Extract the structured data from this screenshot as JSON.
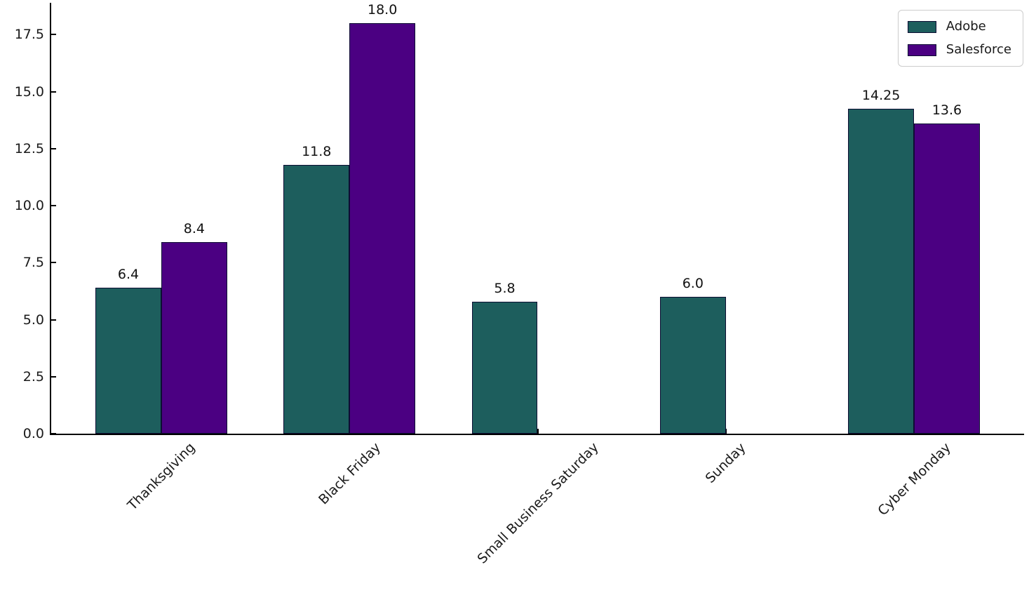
{
  "figure": {
    "background": "#ffffff",
    "axis_color": "#000000",
    "tick_label_color": "#1a1a1a"
  },
  "chart_data": {
    "type": "bar",
    "title": "",
    "xlabel": "",
    "ylabel": "",
    "grid": false,
    "categories": [
      "Thanksgiving",
      "Black Friday",
      "Small Business Saturday",
      "Sunday",
      "Cyber Monday"
    ],
    "series": [
      {
        "name": "Adobe",
        "color": "#1d5e5d",
        "values": [
          6.4,
          11.8,
          5.8,
          6.0,
          14.25
        ],
        "value_labels": [
          "6.4",
          "11.8",
          "5.8",
          "6.0",
          "14.25"
        ]
      },
      {
        "name": "Salesforce",
        "color": "#4b0082",
        "values": [
          8.4,
          18.0,
          0,
          0,
          13.6
        ],
        "value_labels": [
          "8.4",
          "18.0",
          "",
          "",
          "13.6"
        ]
      }
    ],
    "bar_edge_color": "#0d0d33",
    "y_ticks": [
      {
        "value": 0,
        "label": "0.0"
      },
      {
        "value": 2.5,
        "label": "2.5"
      },
      {
        "value": 5,
        "label": "5.0"
      },
      {
        "value": 7.5,
        "label": "7.5"
      },
      {
        "value": 10,
        "label": "10.0"
      },
      {
        "value": 12.5,
        "label": "12.5"
      },
      {
        "value": 15,
        "label": "15.0"
      },
      {
        "value": 17.5,
        "label": "17.5"
      }
    ],
    "ylim": [
      0,
      18.9
    ],
    "x_tick_rotation_deg": 45,
    "bar_width_fraction": 0.35,
    "legend": {
      "position": "top-right",
      "entries": [
        "Adobe",
        "Salesforce"
      ]
    }
  }
}
